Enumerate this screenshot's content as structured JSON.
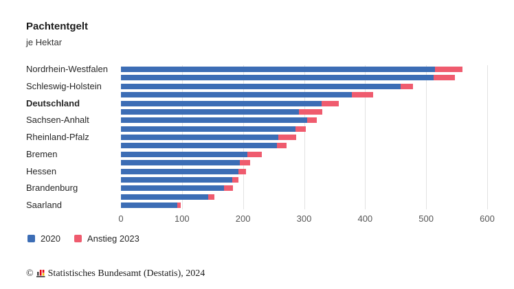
{
  "title": "Pachtentgelt",
  "subtitle": "je Hektar",
  "legend": {
    "items": [
      {
        "label": "2020",
        "color": "#3c6db5"
      },
      {
        "label": "Anstieg 2023",
        "color": "#ef5b6e"
      }
    ]
  },
  "footer": {
    "copyright": "©",
    "source": "Statistisches Bundesamt (Destatis), 2024"
  },
  "colors": {
    "bar_2020": "#3c6db5",
    "bar_anstieg": "#ef5b6e",
    "gridline": "#e2e2e2",
    "tick_text": "#555555",
    "label_text": "#262626"
  },
  "chart_data": {
    "type": "bar",
    "orientation": "horizontal",
    "stacked": true,
    "title": "Pachtentgelt",
    "subtitle": "je Hektar",
    "categories": [
      "Nordrhein-Westfalen",
      "",
      "Schleswig-Holstein",
      "",
      "Deutschland",
      "",
      "Sachsen-Anhalt",
      "",
      "Rheinland-Pfalz",
      "",
      "Bremen",
      "",
      "Hessen",
      "",
      "Brandenburg",
      "",
      "Saarland"
    ],
    "bold_category": "Deutschland",
    "series": [
      {
        "name": "2020",
        "color": "#3c6db5",
        "values": [
          515,
          512,
          458,
          378,
          329,
          292,
          305,
          286,
          258,
          256,
          207,
          195,
          193,
          182,
          169,
          143,
          92
        ]
      },
      {
        "name": "Anstieg 2023",
        "color": "#ef5b6e",
        "values": [
          45,
          35,
          20,
          35,
          28,
          38,
          16,
          17,
          29,
          15,
          24,
          17,
          12,
          10,
          14,
          10,
          6
        ]
      }
    ],
    "totals_2023": [
      560,
      547,
      478,
      413,
      357,
      330,
      321,
      303,
      287,
      271,
      231,
      212,
      205,
      192,
      183,
      153,
      98
    ],
    "xlabel": "",
    "ylabel": "",
    "xlim": [
      0,
      600
    ],
    "xticks": [
      0,
      100,
      200,
      300,
      400,
      500,
      600
    ],
    "grid": "vertical",
    "legend_position": "bottom-left"
  }
}
